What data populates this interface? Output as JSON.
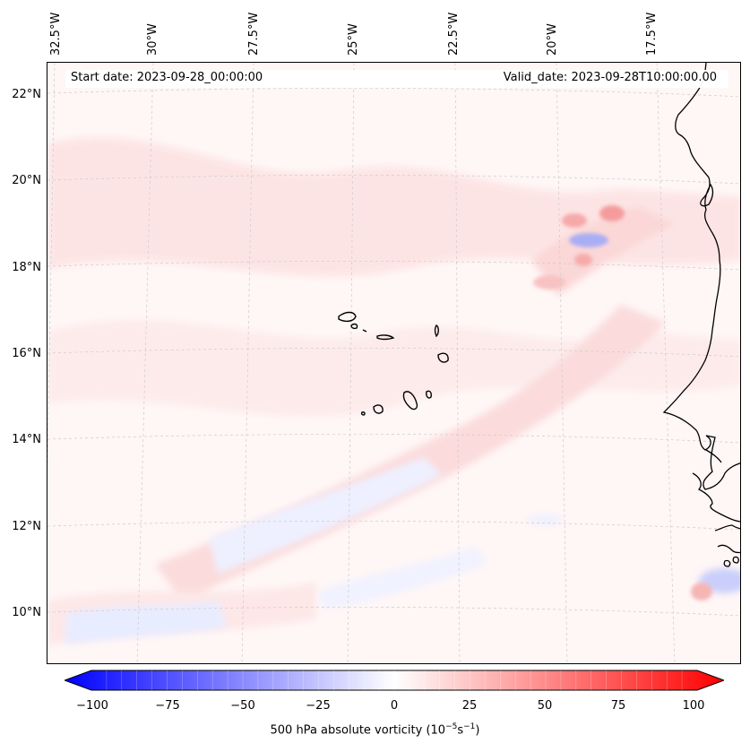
{
  "map": {
    "start_date": "Start date: 2023-09-28_00:00:00",
    "valid_date": "Valid_date: 2023-09-28T10:00:00.00",
    "longitude_labels": [
      "32.5°W",
      "30°W",
      "27.5°W",
      "25°W",
      "22.5°W",
      "20°W",
      "17.5°W"
    ],
    "latitude_labels": [
      "22°N",
      "20°N",
      "18°N",
      "16°N",
      "14°N",
      "12°N",
      "10°N"
    ],
    "field": "500 hPa absolute vorticity",
    "region": "Cape Verde / West African coast"
  },
  "colorbar": {
    "label_prefix": "500 hPa absolute vorticity (10",
    "label_exp1": "−5",
    "label_mid": "s",
    "label_exp2": "−1",
    "label_suffix": ")",
    "ticks": [
      "−100",
      "−75",
      "−50",
      "−25",
      "0",
      "25",
      "50",
      "75",
      "100"
    ],
    "min": -100,
    "max": 100,
    "colors": {
      "low": "#0000ff",
      "mid": "#ffffff",
      "high": "#ff0000"
    }
  }
}
